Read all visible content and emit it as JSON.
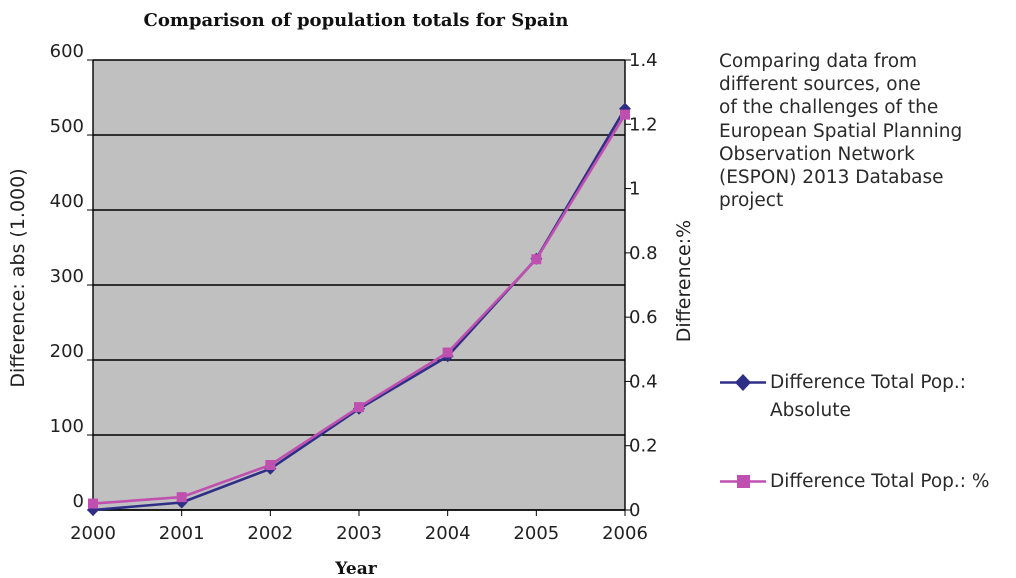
{
  "chart_data": {
    "type": "line",
    "title": "Comparison of population totals for Spain",
    "xlabel": "Year",
    "ylabel": "Difference: abs (1.000)",
    "y2label": "Difference:%",
    "x": [
      2000,
      2001,
      2002,
      2003,
      2004,
      2005,
      2006
    ],
    "xticks": [
      "2000",
      "2001",
      "2002",
      "2003",
      "2004",
      "2005",
      "2006"
    ],
    "ylim": [
      0,
      600
    ],
    "yticks": [
      "0",
      "100",
      "200",
      "300",
      "400",
      "500",
      "600"
    ],
    "y2lim": [
      0,
      1.4
    ],
    "y2ticks": [
      "0",
      "0.2",
      "0.4",
      "0.6",
      "0.8",
      "1",
      "1.2",
      "1.4"
    ],
    "grid": true,
    "plot_background": "#c0c0c0",
    "series": [
      {
        "name": "Difference Total Pop.: Absolute",
        "axis": "left",
        "color": "#2e2e86",
        "marker": "diamond",
        "values": [
          0,
          10,
          55,
          135,
          205,
          335,
          535
        ]
      },
      {
        "name": "Difference Total Pop.: %",
        "axis": "right",
        "color": "#c050b0",
        "marker": "square",
        "values": [
          0.02,
          0.04,
          0.14,
          0.32,
          0.49,
          0.78,
          1.23
        ]
      }
    ]
  },
  "annotation": {
    "lines": [
      "Comparing data from",
      "different sources, one",
      "of the challenges of the",
      "European Spatial Planning",
      "Observation Network",
      "(ESPON) 2013 Database",
      "project"
    ]
  },
  "legend": {
    "position": "right",
    "items": [
      {
        "line1": "Difference Total Pop.:",
        "line2": "Absolute"
      },
      {
        "line1": "Difference Total Pop.: %"
      }
    ]
  }
}
